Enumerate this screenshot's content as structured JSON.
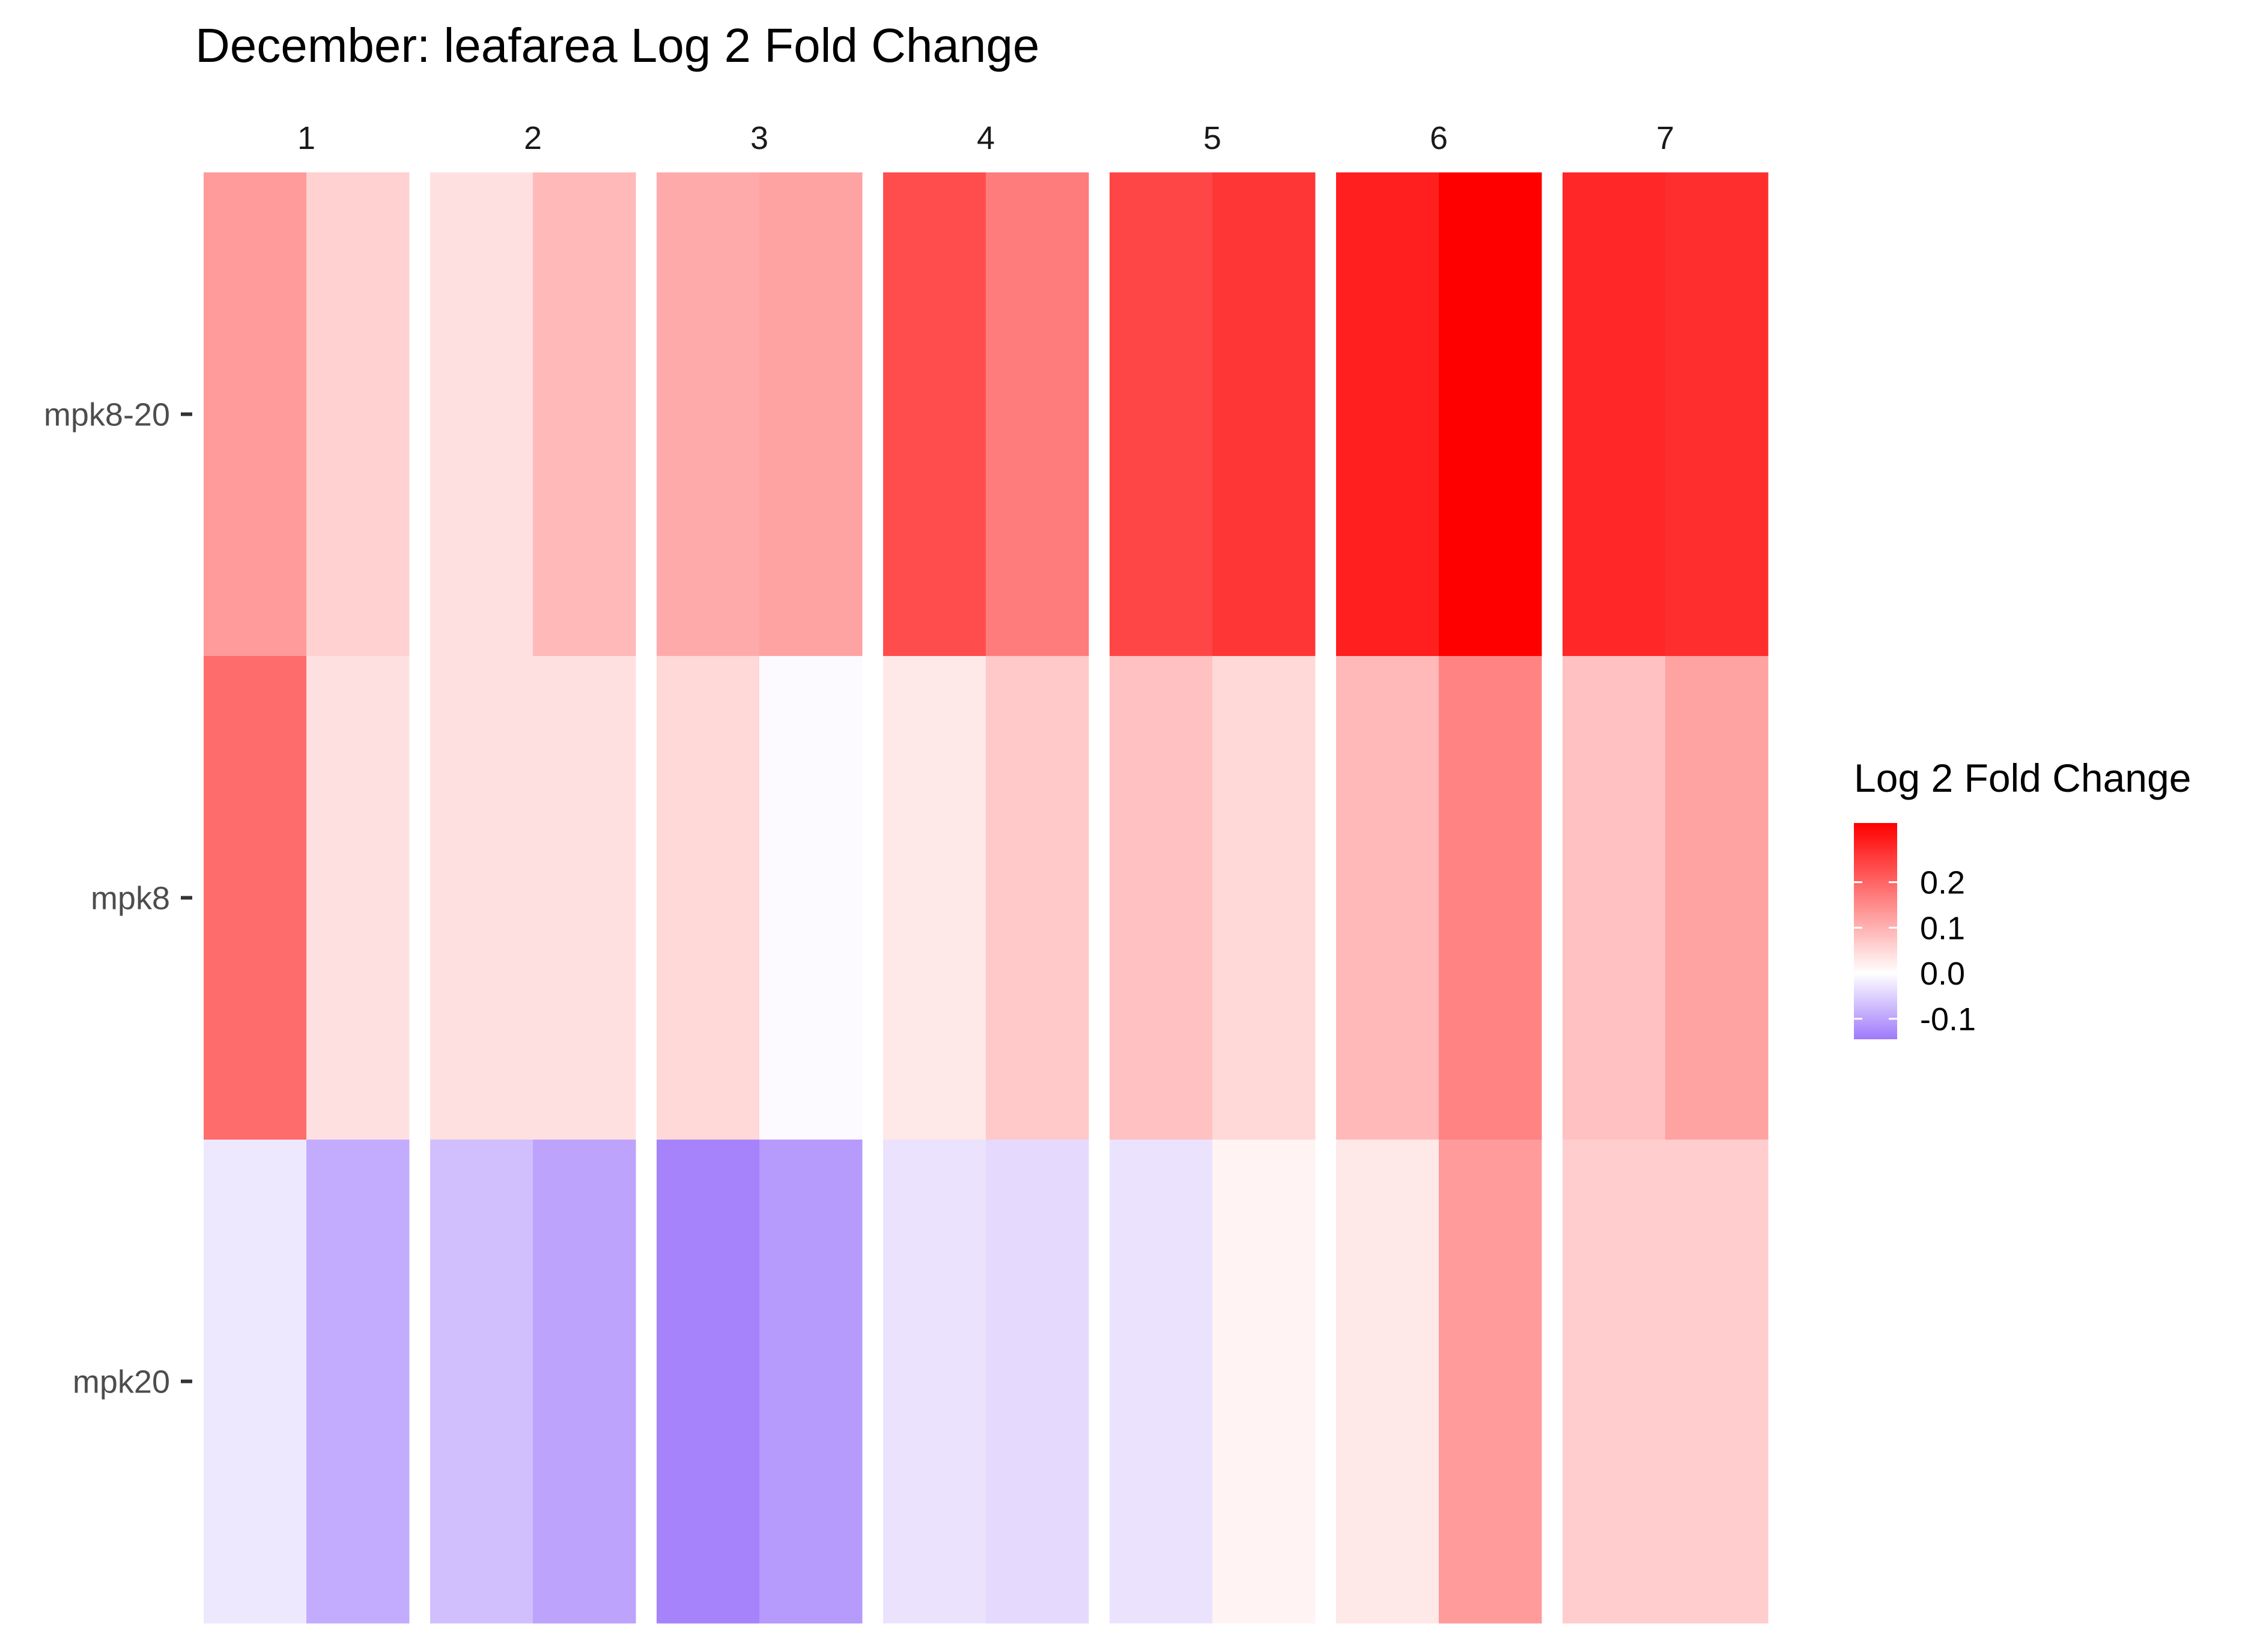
{
  "chart_data": {
    "type": "heatmap",
    "title": "December: leafarea Log 2 Fold Change",
    "facets": [
      "1",
      "2",
      "3",
      "4",
      "5",
      "6",
      "7"
    ],
    "rows": [
      "mpk8-20",
      "mpk8",
      "mpk20"
    ],
    "columns_per_facet": 2,
    "values": {
      "mpk8-20": [
        [
          0.13,
          0.06
        ],
        [
          0.04,
          0.09
        ],
        [
          0.11,
          0.12
        ],
        [
          0.23,
          0.17
        ],
        [
          0.24,
          0.26
        ],
        [
          0.29,
          0.33
        ],
        [
          0.28,
          0.27
        ]
      ],
      "mpk8": [
        [
          0.19,
          0.04
        ],
        [
          0.04,
          0.04
        ],
        [
          0.05,
          -0.005
        ],
        [
          0.03,
          0.07
        ],
        [
          0.08,
          0.05
        ],
        [
          0.09,
          0.16
        ],
        [
          0.08,
          0.12
        ]
      ],
      "mpk20": [
        [
          -0.025,
          -0.09
        ],
        [
          -0.07,
          -0.1
        ],
        [
          -0.135,
          -0.11
        ],
        [
          -0.03,
          -0.04
        ],
        [
          -0.03,
          0.015
        ],
        [
          0.03,
          0.13
        ],
        [
          0.065,
          0.065
        ]
      ]
    },
    "legend": {
      "title": "Log 2 Fold Change",
      "ticks": [
        "0.2",
        "0.1",
        "0.0",
        "-0.1"
      ],
      "range": [
        -0.145,
        0.33
      ]
    },
    "colors": {
      "low": "#9f7afb",
      "mid": "#ffffff",
      "high": "#ff0000"
    },
    "grid": false
  }
}
